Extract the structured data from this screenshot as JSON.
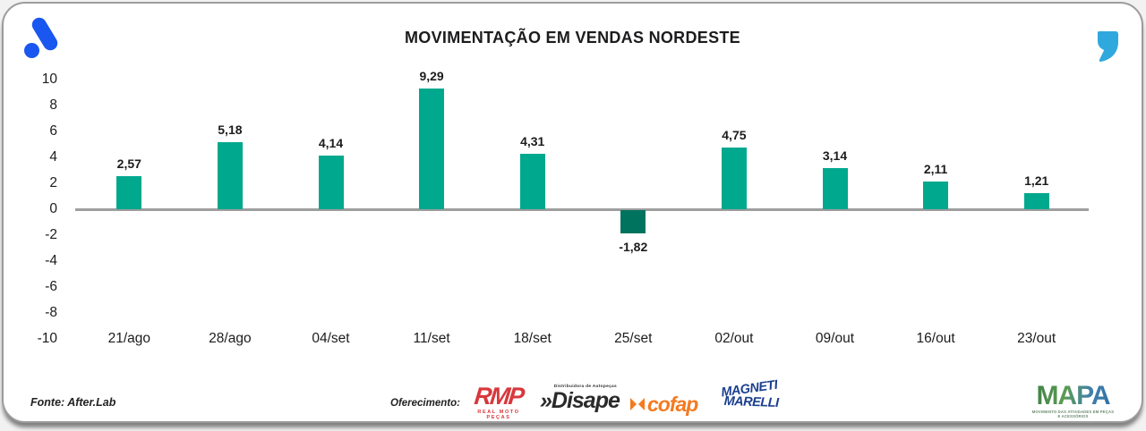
{
  "colors": {
    "brand_blue": "#1a56f0",
    "quote_blue": "#2fa9dd",
    "bar_positive": "#00a88e",
    "bar_negative": "#00735e",
    "axis_line": "#9e9e9e",
    "text": "#1c1c1e"
  },
  "header": {
    "title": "MOVIMENTAÇÃO EM VENDAS NORDESTE"
  },
  "chart_data": {
    "type": "bar",
    "title": "MOVIMENTAÇÃO EM VENDAS NORDESTE",
    "categories": [
      "21/ago",
      "28/ago",
      "04/set",
      "11/set",
      "18/set",
      "25/set",
      "02/out",
      "09/out",
      "16/out",
      "23/out"
    ],
    "values": [
      2.57,
      5.18,
      4.14,
      9.29,
      4.31,
      -1.82,
      4.75,
      3.14,
      2.11,
      1.21
    ],
    "value_labels": [
      "2,57",
      "5,18",
      "4,14",
      "9,29",
      "4,31",
      "-1,82",
      "4,75",
      "3,14",
      "2,11",
      "1,21"
    ],
    "yticks": [
      10,
      8,
      6,
      4,
      2,
      0,
      -2,
      -4,
      -6,
      -8,
      -10
    ],
    "ylim": [
      -10,
      10
    ],
    "xlabel": "",
    "ylabel": "",
    "grid": false,
    "legend": false,
    "bar_color_positive": "#00a88e",
    "bar_color_negative": "#00735e"
  },
  "footer": {
    "source": "Fonte: After.Lab",
    "sponsor_label": "Oferecimento:",
    "sponsors": {
      "rmp": {
        "name": "RMP",
        "subtitle": "REAL MOTO PEÇAS"
      },
      "disape": {
        "name": "»Disape",
        "subtitle": "Distribuidora de Autopeças"
      },
      "cofap": {
        "name": "cofap"
      },
      "magneti": {
        "line1": "MAGNETI",
        "line2": "MARELLI"
      }
    },
    "mapa": {
      "name": "MAPA",
      "subtitle": "MOVIMENTO DAS ATIVIDADES EM PEÇAS E ACESSÓRIOS"
    }
  }
}
